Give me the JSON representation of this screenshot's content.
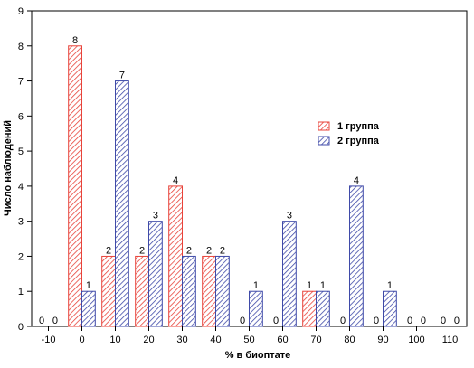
{
  "chart_data": {
    "type": "bar",
    "xlabel": "% в биоптате",
    "ylabel": "Число наблюдений",
    "ylim": [
      0,
      9
    ],
    "xlim": [
      -15,
      115
    ],
    "x_ticks": [
      -10,
      0,
      10,
      20,
      30,
      40,
      50,
      60,
      70,
      80,
      90,
      100,
      110
    ],
    "y_ticks": [
      0,
      1,
      2,
      3,
      4,
      5,
      6,
      7,
      8,
      9
    ],
    "bin_centers": [
      -10,
      0,
      10,
      20,
      30,
      40,
      50,
      60,
      70,
      80,
      90,
      100,
      110
    ],
    "legend_position": "right",
    "grid": false,
    "series": [
      {
        "name": "1 группа",
        "color": "#e8433a",
        "values": [
          0,
          8,
          2,
          2,
          4,
          2,
          0,
          0,
          1,
          0,
          0,
          0,
          0
        ]
      },
      {
        "name": "2 группа",
        "color": "#3f4aa8",
        "values": [
          0,
          1,
          7,
          3,
          2,
          2,
          1,
          3,
          1,
          4,
          1,
          0,
          0
        ]
      }
    ]
  }
}
